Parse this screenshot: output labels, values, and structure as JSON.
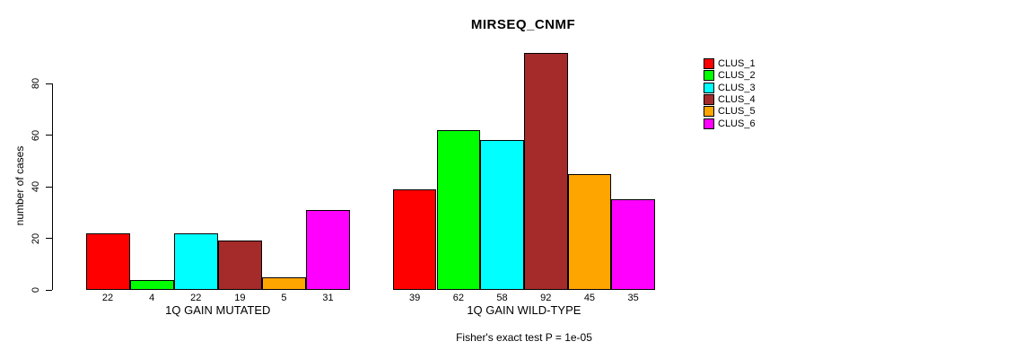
{
  "chart_data": {
    "type": "bar",
    "title": "MIRSEQ_CNMF",
    "ylabel": "number of cases",
    "xlabel": "",
    "ylim": [
      0,
      95
    ],
    "yticks": [
      0,
      20,
      40,
      60,
      80
    ],
    "grid": false,
    "legend_position": "right-outside",
    "series_labels": [
      "CLUS_1",
      "CLUS_2",
      "CLUS_3",
      "CLUS_4",
      "CLUS_5",
      "CLUS_6"
    ],
    "colors": [
      "#FF0000",
      "#00FF00",
      "#00FFFF",
      "#A52A2A",
      "#FFA500",
      "#FF00FF"
    ],
    "groups": [
      {
        "label": "1Q GAIN MUTATED",
        "values": [
          22,
          4,
          22,
          19,
          5,
          31
        ]
      },
      {
        "label": "1Q GAIN WILD-TYPE",
        "values": [
          39,
          62,
          58,
          92,
          45,
          35
        ]
      }
    ],
    "bar_value_labels_shown": true,
    "annotation": "Fisher's exact test P = 1e-05"
  }
}
